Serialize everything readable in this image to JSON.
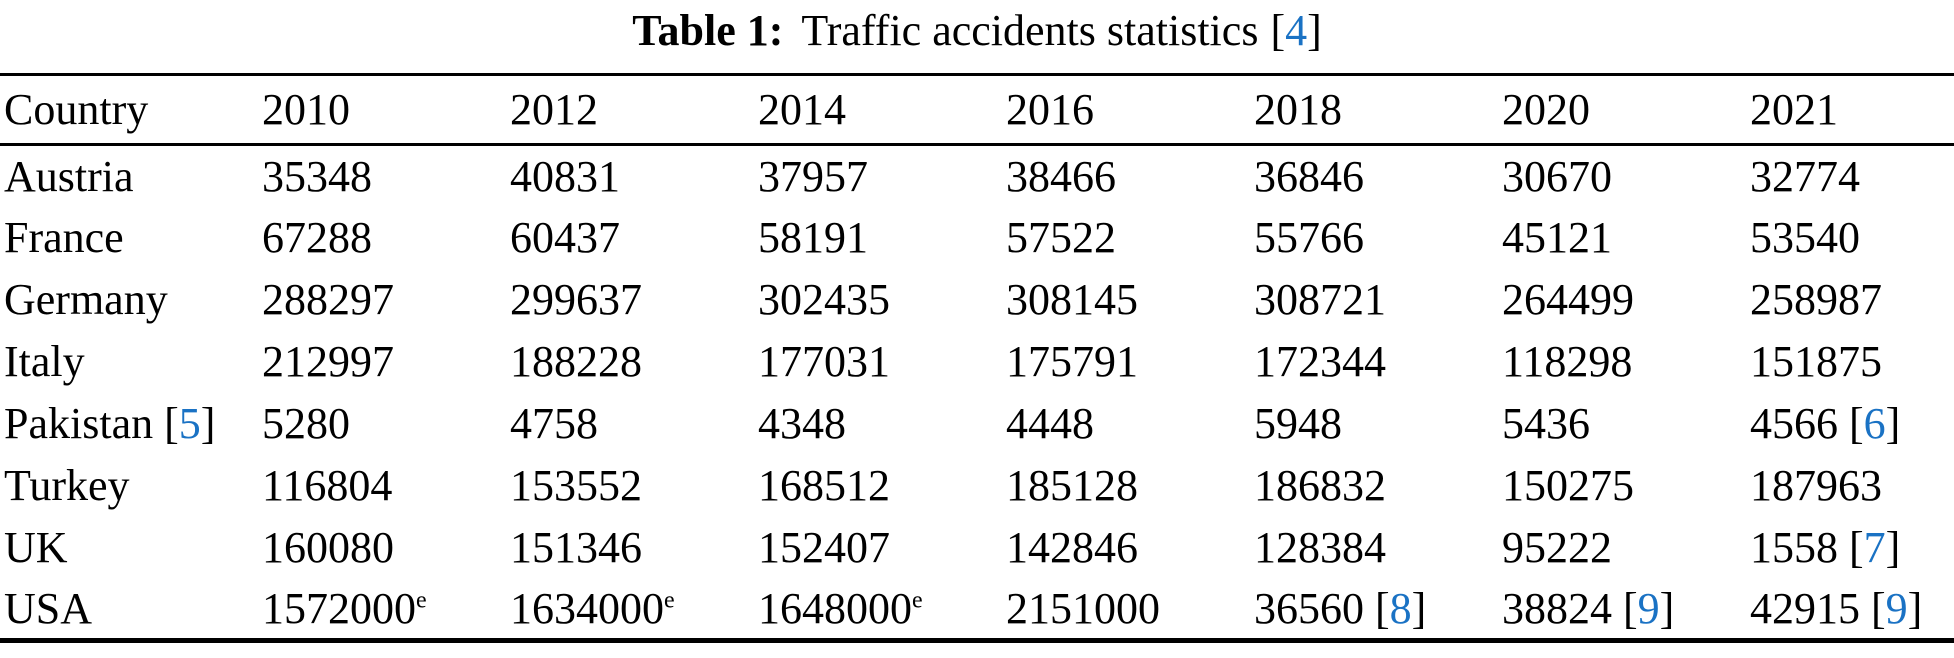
{
  "caption": {
    "label": "Table 1:",
    "text": "Traffic accidents statistics",
    "citation": "4"
  },
  "symbols": {
    "bracket_open": "[",
    "bracket_close": "]"
  },
  "colors": {
    "citation_link": "#1a72c4",
    "text": "#000000",
    "rule": "#000000",
    "background": "#ffffff"
  },
  "chart_data": {
    "type": "table",
    "title": "Table 1: Traffic accidents statistics [4]",
    "columns": [
      "Country",
      "2010",
      "2012",
      "2014",
      "2016",
      "2018",
      "2020",
      "2021"
    ],
    "rows": [
      {
        "country": {
          "text": "Austria"
        },
        "values": [
          {
            "text": "35348"
          },
          {
            "text": "40831"
          },
          {
            "text": "37957"
          },
          {
            "text": "38466"
          },
          {
            "text": "36846"
          },
          {
            "text": "30670"
          },
          {
            "text": "32774"
          }
        ]
      },
      {
        "country": {
          "text": "France"
        },
        "values": [
          {
            "text": "67288"
          },
          {
            "text": "60437"
          },
          {
            "text": "58191"
          },
          {
            "text": "57522"
          },
          {
            "text": "55766"
          },
          {
            "text": "45121"
          },
          {
            "text": "53540"
          }
        ]
      },
      {
        "country": {
          "text": "Germany"
        },
        "values": [
          {
            "text": "288297"
          },
          {
            "text": "299637"
          },
          {
            "text": "302435"
          },
          {
            "text": "308145"
          },
          {
            "text": "308721"
          },
          {
            "text": "264499"
          },
          {
            "text": "258987"
          }
        ]
      },
      {
        "country": {
          "text": "Italy"
        },
        "values": [
          {
            "text": "212997"
          },
          {
            "text": "188228"
          },
          {
            "text": "177031"
          },
          {
            "text": "175791"
          },
          {
            "text": "172344"
          },
          {
            "text": "118298"
          },
          {
            "text": "151875"
          }
        ]
      },
      {
        "country": {
          "text": "Pakistan",
          "citation": "5"
        },
        "values": [
          {
            "text": "5280"
          },
          {
            "text": "4758"
          },
          {
            "text": "4348"
          },
          {
            "text": "4448"
          },
          {
            "text": "5948"
          },
          {
            "text": "5436"
          },
          {
            "text": "4566",
            "citation": "6"
          }
        ]
      },
      {
        "country": {
          "text": "Turkey"
        },
        "values": [
          {
            "text": "116804"
          },
          {
            "text": "153552"
          },
          {
            "text": "168512"
          },
          {
            "text": "185128"
          },
          {
            "text": "186832"
          },
          {
            "text": "150275"
          },
          {
            "text": "187963"
          }
        ]
      },
      {
        "country": {
          "text": "UK"
        },
        "values": [
          {
            "text": "160080"
          },
          {
            "text": "151346"
          },
          {
            "text": "152407"
          },
          {
            "text": "142846"
          },
          {
            "text": "128384"
          },
          {
            "text": "95222"
          },
          {
            "text": "1558",
            "citation": "7"
          }
        ]
      },
      {
        "country": {
          "text": "USA"
        },
        "values": [
          {
            "text": "1572000",
            "sup": "e"
          },
          {
            "text": "1634000",
            "sup": "e"
          },
          {
            "text": "1648000",
            "sup": "e"
          },
          {
            "text": "2151000"
          },
          {
            "text": "36560",
            "citation": "8"
          },
          {
            "text": "38824",
            "citation": "9"
          },
          {
            "text": "42915",
            "citation": "9"
          }
        ]
      }
    ]
  }
}
